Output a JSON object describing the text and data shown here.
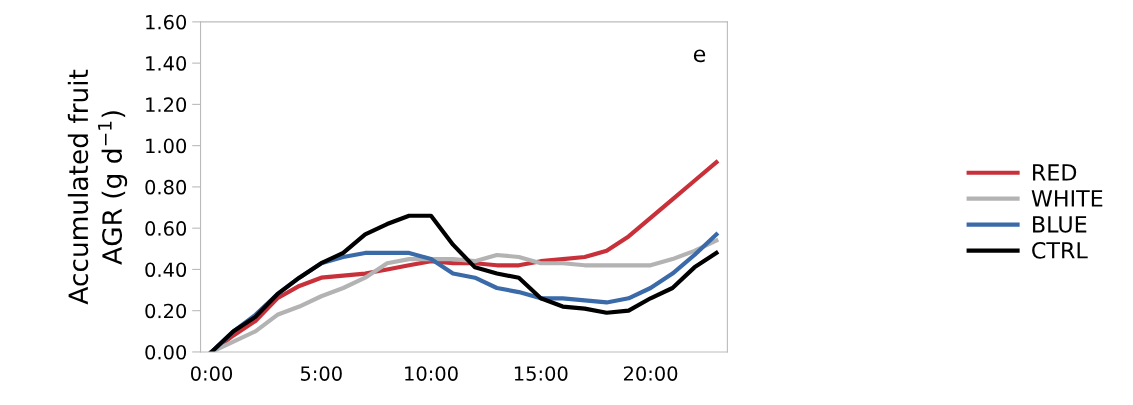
{
  "chart_data": {
    "type": "line",
    "ylabel": "Accumulated fruit\nAGR (g d$^{−1}$)",
    "annotations": [
      "e"
    ],
    "x": [
      0,
      1,
      2,
      3,
      4,
      5,
      6,
      7,
      8,
      9,
      10,
      11,
      12,
      13,
      14,
      15,
      16,
      17,
      18,
      19,
      20,
      21,
      22,
      23
    ],
    "xlim": [
      -0.5,
      23.5
    ],
    "xticks": [
      {
        "value": 0,
        "label": "0:00"
      },
      {
        "value": 5,
        "label": "5:00"
      },
      {
        "value": 10,
        "label": "10:00"
      },
      {
        "value": 15,
        "label": "15:00"
      },
      {
        "value": 20,
        "label": "20:00"
      }
    ],
    "ylim": [
      0,
      1.6
    ],
    "yticks": [
      {
        "value": 0,
        "label": "0.00"
      },
      {
        "value": 0.2,
        "label": "0.20"
      },
      {
        "value": 0.4,
        "label": "0.40"
      },
      {
        "value": 0.6,
        "label": "0.60"
      },
      {
        "value": 0.8,
        "label": "0.80"
      },
      {
        "value": 1.0,
        "label": "1.00"
      },
      {
        "value": 1.2,
        "label": "1.20"
      },
      {
        "value": 1.4,
        "label": "1.40"
      },
      {
        "value": 1.6,
        "label": "1.60"
      }
    ],
    "grid": false,
    "legend": "right",
    "marker": "none",
    "line_style": "solid",
    "series": [
      {
        "name": "RED",
        "color": "#c8313a",
        "values": [
          0,
          0.08,
          0.15,
          0.26,
          0.32,
          0.36,
          0.37,
          0.38,
          0.4,
          0.42,
          0.44,
          0.43,
          0.43,
          0.42,
          0.42,
          0.44,
          0.45,
          0.46,
          0.49,
          0.56,
          0.65,
          0.74,
          0.83,
          0.92
        ]
      },
      {
        "name": "WHITE",
        "color": "#b3b3b3",
        "values": [
          0,
          0.05,
          0.1,
          0.18,
          0.22,
          0.27,
          0.31,
          0.36,
          0.43,
          0.45,
          0.45,
          0.45,
          0.44,
          0.47,
          0.46,
          0.43,
          0.43,
          0.42,
          0.42,
          0.42,
          0.42,
          0.45,
          0.49,
          0.54
        ]
      },
      {
        "name": "BLUE",
        "color": "#3a6aa8",
        "values": [
          0,
          0.1,
          0.18,
          0.28,
          0.36,
          0.43,
          0.46,
          0.48,
          0.48,
          0.48,
          0.45,
          0.38,
          0.36,
          0.31,
          0.29,
          0.26,
          0.26,
          0.25,
          0.24,
          0.26,
          0.31,
          0.38,
          0.47,
          0.57
        ]
      },
      {
        "name": "CTRL",
        "color": "#000000",
        "values": [
          0,
          0.1,
          0.17,
          0.28,
          0.36,
          0.43,
          0.48,
          0.57,
          0.62,
          0.66,
          0.66,
          0.52,
          0.41,
          0.38,
          0.36,
          0.26,
          0.22,
          0.21,
          0.19,
          0.2,
          0.26,
          0.31,
          0.41,
          0.48
        ]
      }
    ]
  }
}
